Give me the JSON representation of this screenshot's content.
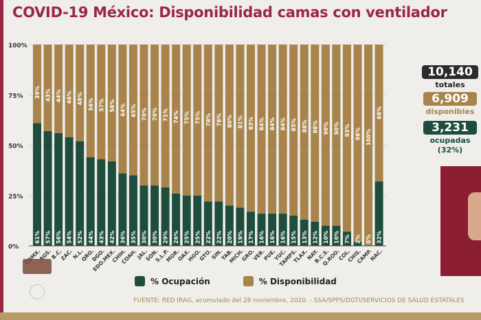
{
  "title": "COVID-19 México: Disponibilidad camas con ventilador",
  "stats": {
    "total": {
      "value": "10,140",
      "label": "totales",
      "color": "#2b2b2b"
    },
    "disponibles": {
      "value": "6,909",
      "label": "disponibles",
      "color": "#a8844c"
    },
    "ocupadas": {
      "value": "3,231",
      "label": "ocupadas",
      "pct": "(32%)",
      "color": "#1e4d3e"
    }
  },
  "legend": {
    "ocupacion": "% Ocupación",
    "disponibilidad": "% Disponibilidad"
  },
  "source": "FUENTE: RED IRAG, acumulado del 28 noviembre, 2020. -  SSA/SPPS/DGTI/SERVICIOS DE SALUD ESTATALES",
  "chart_data": {
    "type": "bar",
    "stacked": true,
    "categories": [
      "CDMX.",
      "AGS.",
      "B.C.",
      "ZAC.",
      "N.L.",
      "QRO.",
      "DGO.",
      "EDO.MEX.",
      "CHIH.",
      "COAH.",
      "JAL.",
      "SON.",
      "S.L.P.",
      "MOR.",
      "OAX.",
      "HGO.",
      "GTO.",
      "SIN.",
      "TAB.",
      "MICH.",
      "GRO.",
      "VER.",
      "PUE.",
      "YUC.",
      "TAMPS.",
      "TLAX.",
      "NAY.",
      "B.C.S.",
      "Q.ROO.",
      "COL.",
      "CHIS.",
      "CAMP.",
      "NAC."
    ],
    "series": [
      {
        "name": "% Ocupación",
        "color": "#1e4d3e",
        "values": [
          61,
          57,
          56,
          54,
          52,
          44,
          43,
          42,
          36,
          35,
          30,
          30,
          29,
          26,
          25,
          25,
          22,
          22,
          20,
          19,
          17,
          16,
          16,
          16,
          15,
          13,
          12,
          10,
          10,
          7,
          2,
          0,
          32
        ]
      },
      {
        "name": "% Disponibilidad",
        "color": "#a8844c",
        "values": [
          39,
          43,
          44,
          46,
          48,
          56,
          57,
          58,
          64,
          65,
          70,
          70,
          71,
          74,
          75,
          75,
          78,
          78,
          80,
          81,
          83,
          84,
          84,
          84,
          85,
          88,
          88,
          90,
          90,
          93,
          98,
          100,
          68
        ]
      }
    ],
    "yticks": [
      "0%",
      "25%",
      "50%",
      "75%",
      "100%"
    ],
    "ylim": [
      0,
      100
    ],
    "grid": true,
    "legend_position": "bottom"
  }
}
